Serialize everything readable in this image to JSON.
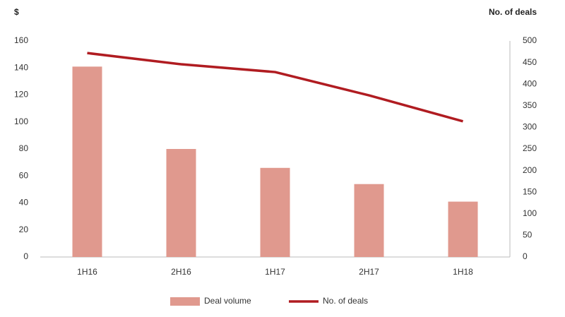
{
  "chart_data": {
    "type": "bar-line",
    "y_label": "$",
    "y2_label": "No. of deals",
    "categories": [
      "1H16",
      "2H16",
      "1H17",
      "2H17",
      "1H18"
    ],
    "series": [
      {
        "name": "Deal volume",
        "type": "bar",
        "color": "#e0998e",
        "values": [
          141,
          80,
          66,
          54,
          41
        ]
      },
      {
        "name": "No. of deals",
        "type": "line",
        "axis": "y2",
        "color": "#b01c21",
        "values": [
          472,
          446,
          428,
          374,
          314
        ]
      }
    ],
    "ylim": [
      0,
      160
    ],
    "yticks": [
      0,
      20,
      40,
      60,
      80,
      100,
      120,
      140,
      160
    ],
    "y2lim": [
      0,
      500
    ],
    "y2ticks": [
      0,
      50,
      100,
      150,
      200,
      250,
      300,
      350,
      400,
      450,
      500
    ],
    "grid": false,
    "legend": "bottom"
  }
}
